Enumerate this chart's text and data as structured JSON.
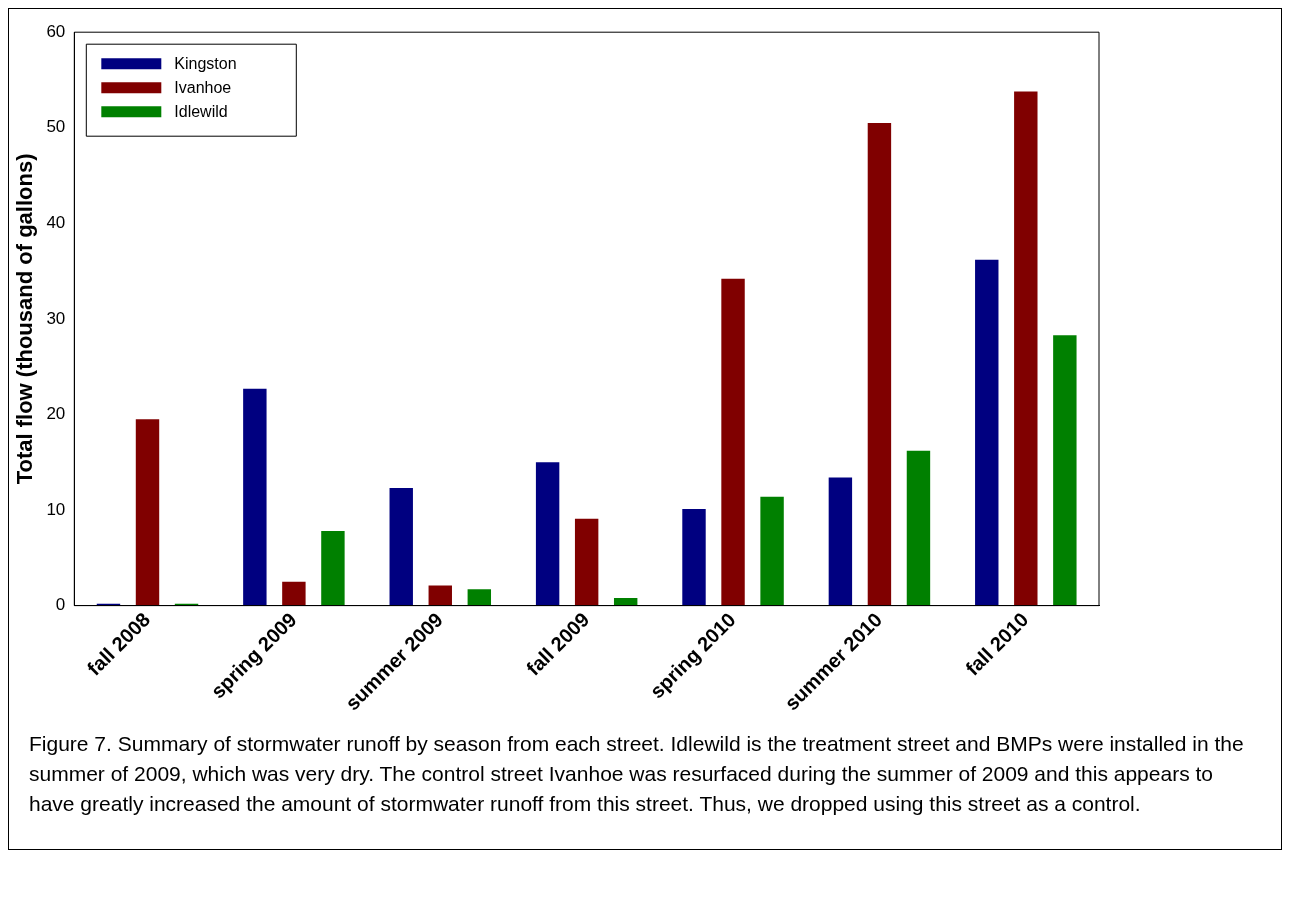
{
  "chart_data": {
    "type": "bar",
    "categories": [
      "fall 2008",
      "spring 2009",
      "summer 2009",
      "fall 2009",
      "spring 2010",
      "summer 2010",
      "fall 2010"
    ],
    "series": [
      {
        "name": "Kingston",
        "color": "#000080",
        "values": [
          0.2,
          22.7,
          12.3,
          15.0,
          10.1,
          13.4,
          36.2
        ]
      },
      {
        "name": "Ivanhoe",
        "color": "#800000",
        "values": [
          19.5,
          2.5,
          2.1,
          9.1,
          34.2,
          50.5,
          53.8
        ]
      },
      {
        "name": "Idlewild",
        "color": "#008000",
        "values": [
          0.2,
          7.8,
          1.7,
          0.8,
          11.4,
          16.2,
          28.3
        ]
      }
    ],
    "ylabel": "Total flow (thousand of gallons)",
    "ylim": [
      0,
      60
    ],
    "yticks": [
      0,
      10,
      20,
      30,
      40,
      50,
      60
    ],
    "grid": false,
    "legend": "top left",
    "annotations": [
      "Figure 7. Summary of stormwater runoff by season from each street. Idlewild is the treatment street and BMPs were installed in the summer of 2009, which was very dry. The control street Ivanhoe was resurfaced during the summer of 2009 and this appears to have greatly increased the amount of stormwater runoff from this street. Thus, we dropped using this street as a control."
    ]
  }
}
